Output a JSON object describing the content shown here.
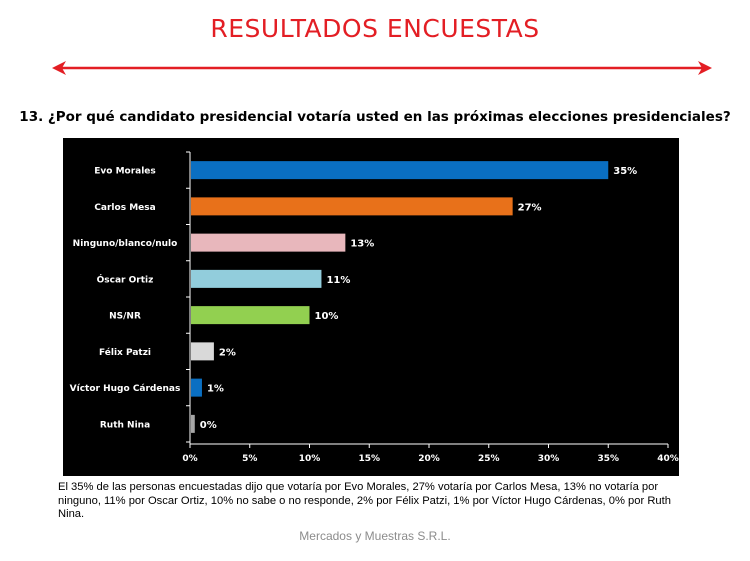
{
  "header": {
    "title": "RESULTADOS ENCUESTAS",
    "arrow_color": "#e31e24"
  },
  "question": "13. ¿Por qué candidato presidencial votaría usted en las próximas  elecciones presidenciales?",
  "chart_data": {
    "type": "bar",
    "orientation": "horizontal",
    "categories": [
      "Evo Morales",
      "Carlos Mesa",
      "Ninguno/blanco/nulo",
      "Óscar Ortiz",
      "NS/NR",
      "Félix Patzi",
      "Víctor Hugo Cárdenas",
      "Ruth Nina"
    ],
    "values": [
      35,
      27,
      13,
      11,
      10,
      2,
      1,
      0.4
    ],
    "value_labels": [
      "35%",
      "27%",
      "13%",
      "11%",
      "10%",
      "2%",
      "1%",
      "0%"
    ],
    "colors": [
      "#0a6fc2",
      "#e8711a",
      "#e8b7bc",
      "#92cddc",
      "#92d050",
      "#d9d9d9",
      "#0a6fc2",
      "#a6a6a6"
    ],
    "xlim": [
      0,
      40
    ],
    "x_ticks": [
      "0%",
      "5%",
      "10%",
      "15%",
      "20%",
      "25%",
      "30%",
      "35%",
      "40%"
    ],
    "background": "#000000",
    "grid": false
  },
  "caption": "El 35% de las personas encuestadas dijo que votaría por Evo Morales, 27% votaría por Carlos Mesa, 13% no votaría por ninguno, 11% por Oscar Ortiz, 10% no sabe o no responde, 2% por Félix Patzi, 1% por Víctor Hugo Cárdenas, 0% por Ruth Nina.",
  "footer": "Mercados y Muestras S.R.L."
}
